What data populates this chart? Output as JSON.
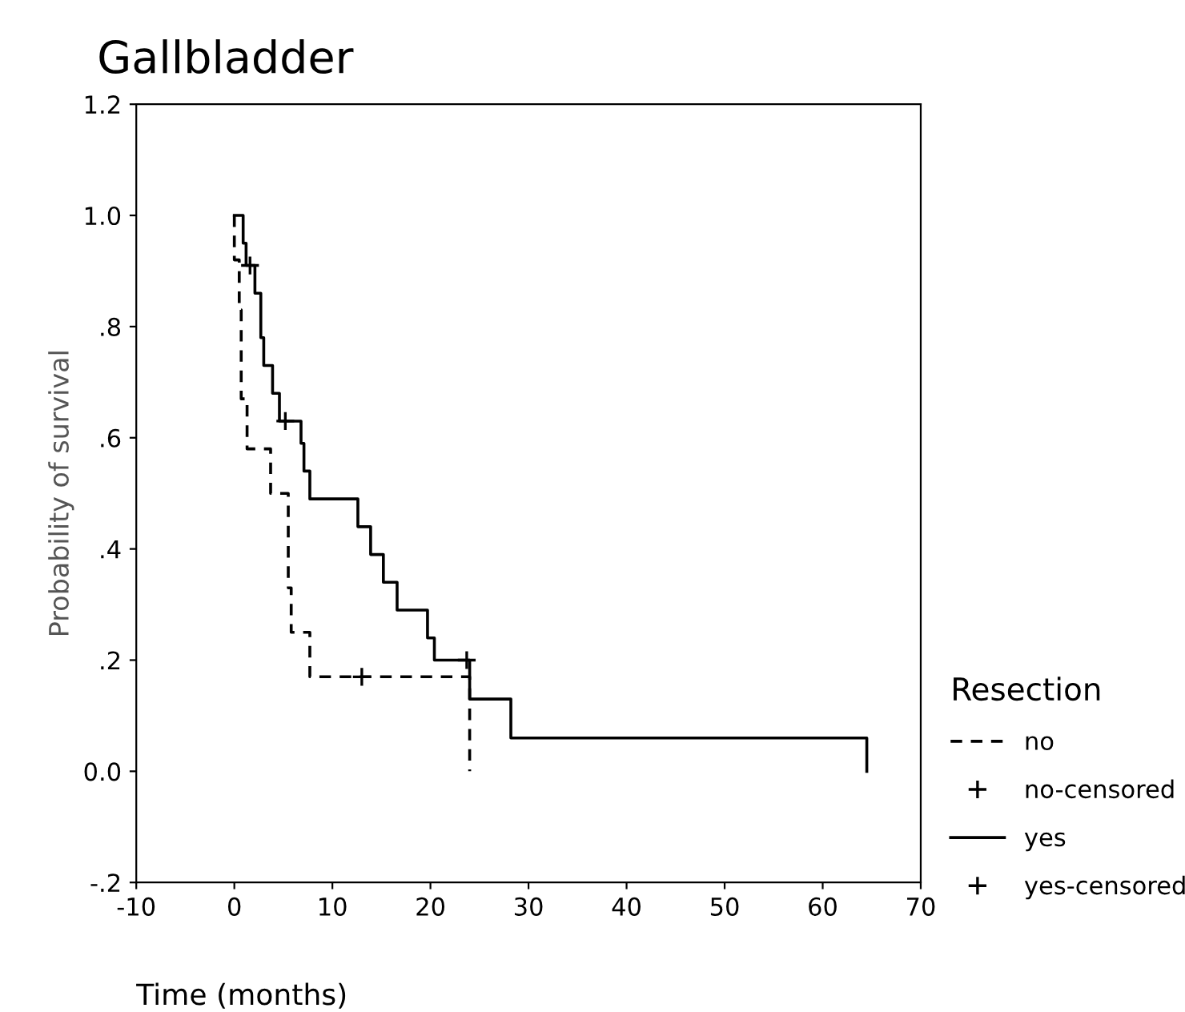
{
  "chart_data": {
    "type": "step",
    "title": "Gallbladder",
    "xlabel": "Time (months)",
    "ylabel": "Probability of survival",
    "legend_title": "Resection",
    "series": [
      {
        "name": "no",
        "color": "#000000",
        "line_style": "dashed",
        "x": [
          0,
          0,
          0.5,
          0.7,
          1.3,
          3.7,
          5.5,
          5.8,
          7.7,
          24
        ],
        "values": [
          1.0,
          0.92,
          0.83,
          0.67,
          0.58,
          0.5,
          0.33,
          0.25,
          0.17,
          0
        ]
      },
      {
        "name": "no-censored",
        "type": "scatter",
        "color": "#000000",
        "marker": "cross",
        "x": [
          13
        ],
        "values": [
          0.17
        ]
      },
      {
        "name": "yes",
        "color": "#000000",
        "line_style": "solid",
        "x": [
          0,
          0.9,
          1.2,
          2.1,
          2.7,
          3.0,
          3.9,
          4.6,
          6.8,
          7.1,
          7.7,
          12.6,
          13.9,
          15.2,
          16.6,
          19.7,
          20.4,
          24,
          28.2,
          64.5
        ],
        "values": [
          1.0,
          0.95,
          0.91,
          0.86,
          0.78,
          0.73,
          0.68,
          0.63,
          0.59,
          0.54,
          0.49,
          0.44,
          0.39,
          0.34,
          0.29,
          0.24,
          0.2,
          0.13,
          0.06,
          0
        ]
      },
      {
        "name": "yes-censored",
        "type": "scatter",
        "color": "#000000",
        "marker": "cross",
        "x": [
          1.6,
          5.2,
          23.7
        ],
        "values": [
          0.91,
          0.63,
          0.2
        ]
      }
    ],
    "xlim": [
      -10,
      70
    ],
    "xticks": [
      -10,
      0,
      10,
      20,
      30,
      40,
      50,
      60,
      70
    ],
    "ylim": [
      -0.2,
      1.2
    ],
    "yticks": [
      {
        "value": -0.2,
        "label": "-.2"
      },
      {
        "value": 0,
        "label": "0.0"
      },
      {
        "value": 0.2,
        "label": ".2"
      },
      {
        "value": 0.4,
        "label": ".4"
      },
      {
        "value": 0.6,
        "label": ".6"
      },
      {
        "value": 0.8,
        "label": ".8"
      },
      {
        "value": 1.0,
        "label": "1.0"
      },
      {
        "value": 1.2,
        "label": "1.2"
      }
    ],
    "grid": false,
    "legend": "right"
  }
}
